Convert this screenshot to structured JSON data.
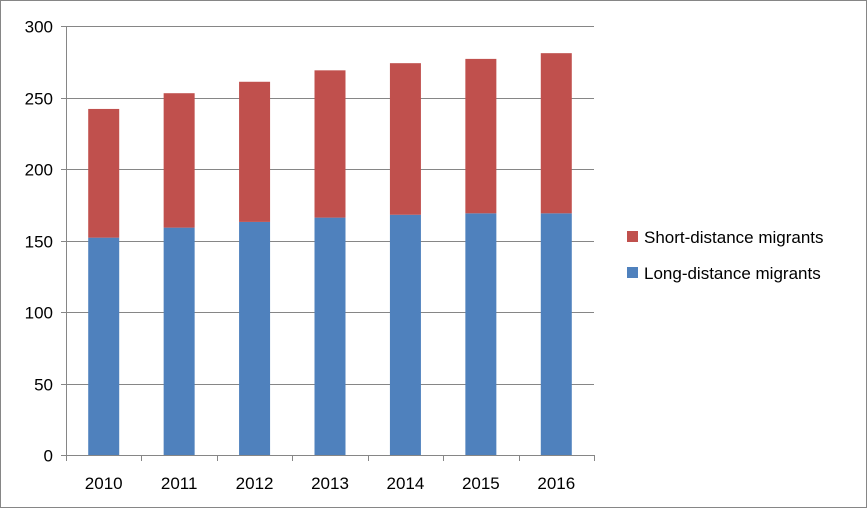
{
  "chart_data": {
    "type": "bar",
    "stacked": true,
    "categories": [
      "2010",
      "2011",
      "2012",
      "2013",
      "2014",
      "2015",
      "2016"
    ],
    "series": [
      {
        "name": "Long-distance migrants",
        "color": "#4f81bd",
        "values": [
          152,
          159,
          163,
          166,
          168,
          169,
          169
        ]
      },
      {
        "name": "Short-distance migrants",
        "color": "#c0504d",
        "values": [
          90,
          94,
          98,
          103,
          106,
          108,
          112
        ]
      }
    ],
    "legend_order": [
      "Short-distance migrants",
      "Long-distance migrants"
    ],
    "ylim": [
      0,
      300
    ],
    "yticks": [
      "0",
      "50",
      "100",
      "150",
      "200",
      "250",
      "300"
    ],
    "grid": true,
    "legend_position": "right",
    "title": "",
    "xlabel": "",
    "ylabel": ""
  }
}
